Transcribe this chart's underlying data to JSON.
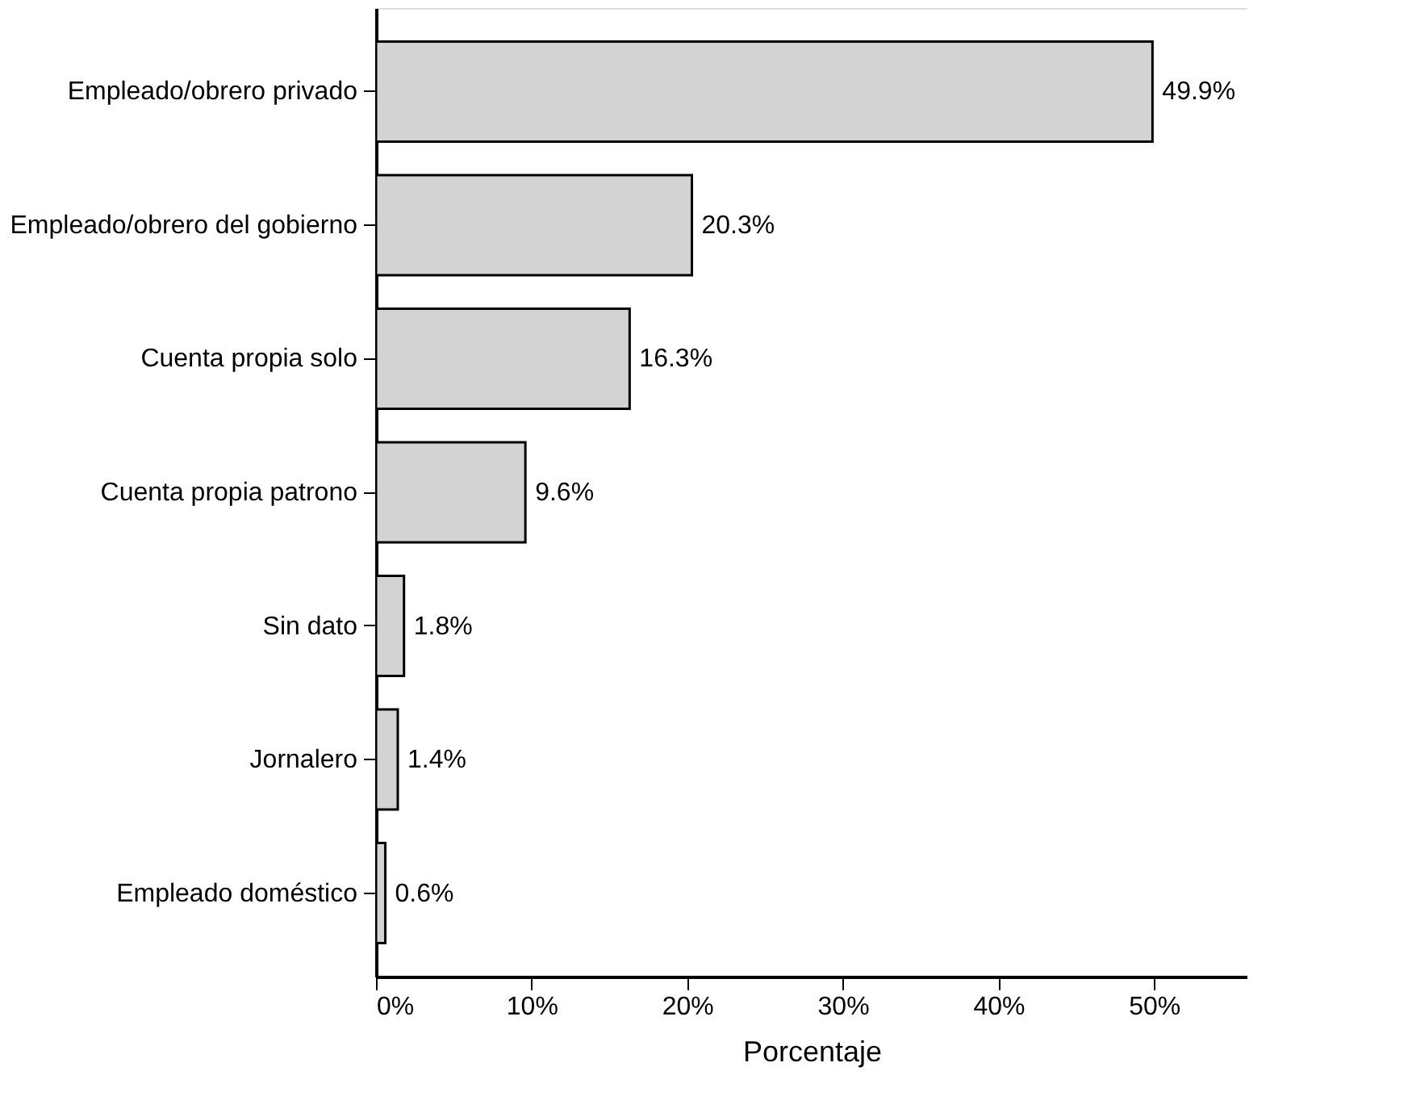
{
  "chart_data": {
    "type": "bar",
    "orientation": "horizontal",
    "xlabel": "Porcentaje",
    "categories": [
      "Empleado/obrero privado",
      "Empleado/obrero del gobierno",
      "Cuenta propia solo",
      "Cuenta propia patrono",
      "Sin dato",
      "Jornalero",
      "Empleado doméstico"
    ],
    "values": [
      49.9,
      20.3,
      16.3,
      9.6,
      1.8,
      1.4,
      0.6
    ],
    "value_labels": [
      "49.9%",
      "20.3%",
      "16.3%",
      "9.6%",
      "1.8%",
      "1.4%",
      "0.6%"
    ],
    "color": "#d3d3d3",
    "xlim": [
      0,
      56
    ],
    "xticks": [
      {
        "value": 0,
        "label": "0%"
      },
      {
        "value": 10,
        "label": "10%"
      },
      {
        "value": 20,
        "label": "20%"
      },
      {
        "value": 30,
        "label": "30%"
      },
      {
        "value": 40,
        "label": "40%"
      },
      {
        "value": 50,
        "label": "50%"
      }
    ],
    "grid": false
  }
}
